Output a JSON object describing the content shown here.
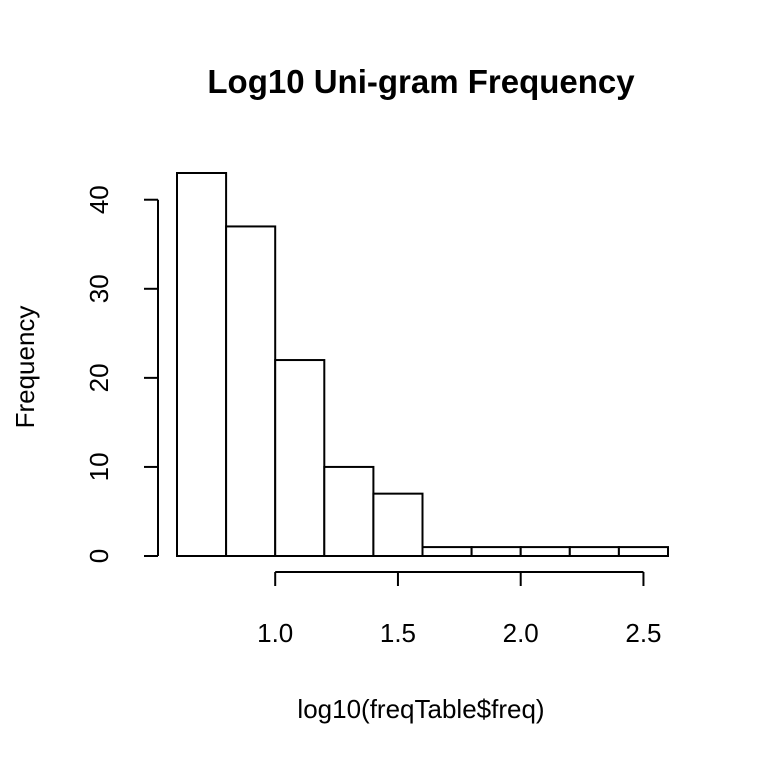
{
  "chart_data": {
    "type": "bar",
    "title": "Log10 Uni-gram Frequency",
    "xlabel": "log10(freqTable$freq)",
    "ylabel": "Frequency",
    "bins": [
      {
        "x0": 0.6,
        "x1": 0.8,
        "value": 43
      },
      {
        "x0": 0.8,
        "x1": 1.0,
        "value": 37
      },
      {
        "x0": 1.0,
        "x1": 1.2,
        "value": 22
      },
      {
        "x0": 1.2,
        "x1": 1.4,
        "value": 10
      },
      {
        "x0": 1.4,
        "x1": 1.6,
        "value": 7
      },
      {
        "x0": 1.6,
        "x1": 1.8,
        "value": 1
      },
      {
        "x0": 1.8,
        "x1": 2.0,
        "value": 1
      },
      {
        "x0": 2.0,
        "x1": 2.2,
        "value": 1
      },
      {
        "x0": 2.2,
        "x1": 2.4,
        "value": 1
      },
      {
        "x0": 2.4,
        "x1": 2.6,
        "value": 1
      }
    ],
    "xlim": [
      0.6,
      2.6
    ],
    "ylim": [
      0,
      43
    ],
    "x_ticks": [
      1.0,
      1.5,
      2.0,
      2.5
    ],
    "x_tick_labels": [
      "1.0",
      "1.5",
      "2.0",
      "2.5"
    ],
    "y_ticks": [
      0,
      10,
      20,
      30,
      40
    ],
    "y_tick_labels": [
      "0",
      "10",
      "20",
      "30",
      "40"
    ],
    "grid": false,
    "legend": "none"
  }
}
